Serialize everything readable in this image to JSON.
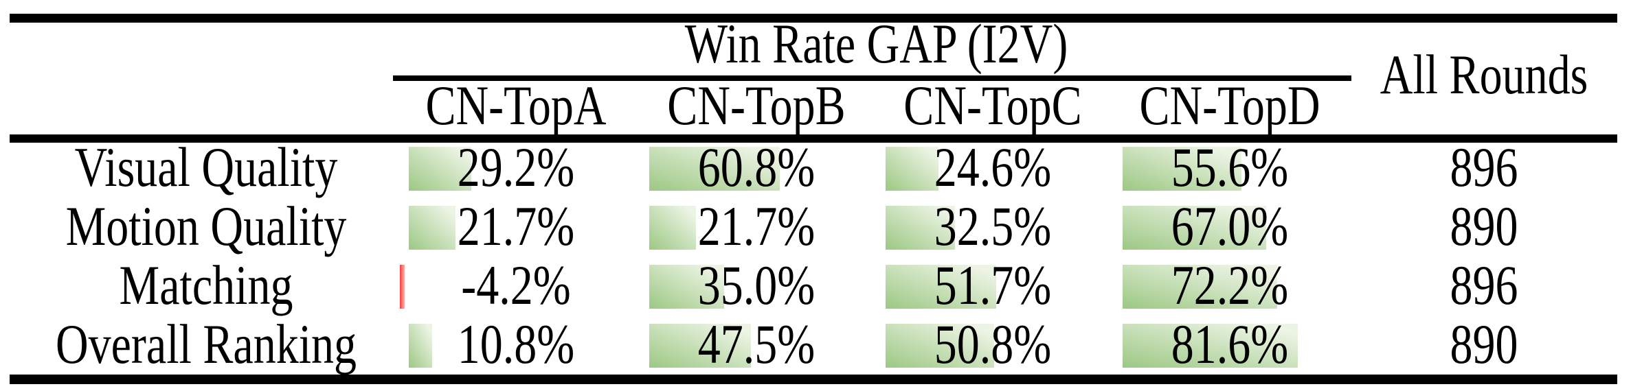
{
  "table": {
    "group_header": "Win Rate GAP (I2V)",
    "all_rounds_header": "All Rounds",
    "column_headers": [
      "CN-TopA",
      "CN-TopB",
      "CN-TopC",
      "CN-TopD"
    ],
    "rows": [
      {
        "label": "Visual Quality",
        "cells": [
          {
            "display": "29.2%",
            "pct": 29.2
          },
          {
            "display": "60.8%",
            "pct": 60.8
          },
          {
            "display": "24.6%",
            "pct": 24.6
          },
          {
            "display": "55.6%",
            "pct": 55.6
          }
        ],
        "all_rounds": "896"
      },
      {
        "label": "Motion Quality",
        "cells": [
          {
            "display": "21.7%",
            "pct": 21.7
          },
          {
            "display": "21.7%",
            "pct": 21.7
          },
          {
            "display": "32.5%",
            "pct": 32.5
          },
          {
            "display": "67.0%",
            "pct": 67.0
          }
        ],
        "all_rounds": "890"
      },
      {
        "label": "Matching",
        "cells": [
          {
            "display": "-4.2%",
            "pct": -4.2
          },
          {
            "display": "35.0%",
            "pct": 35.0
          },
          {
            "display": "51.7%",
            "pct": 51.7
          },
          {
            "display": "72.2%",
            "pct": 72.2
          }
        ],
        "all_rounds": "896"
      },
      {
        "label": "Overall Ranking",
        "cells": [
          {
            "display": "10.8%",
            "pct": 10.8
          },
          {
            "display": "47.5%",
            "pct": 47.5
          },
          {
            "display": "50.8%",
            "pct": 50.8
          },
          {
            "display": "81.6%",
            "pct": 81.6
          }
        ],
        "all_rounds": "890"
      }
    ],
    "colors": {
      "positive_bar_start": "#9cc884",
      "positive_bar_end": "#edf4e5",
      "negative_bar_start": "#f83c3c",
      "negative_bar_end": "#ffb3ab",
      "rule": "#000000",
      "text": "#000000"
    }
  }
}
